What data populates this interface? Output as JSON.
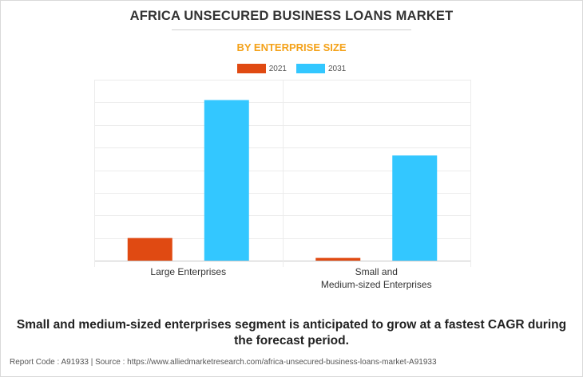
{
  "header": {
    "title": "AFRICA UNSECURED BUSINESS LOANS MARKET",
    "subtitle": "BY ENTERPRISE SIZE"
  },
  "chart_data": {
    "type": "bar",
    "title": "AFRICA UNSECURED BUSINESS LOANS MARKET",
    "subtitle": "BY ENTERPRISE SIZE",
    "categories": [
      "Large Enterprises",
      "Small and\nMedium-sized Enterprises"
    ],
    "category_lines": [
      [
        "Large Enterprises"
      ],
      [
        "Small and",
        "Medium-sized Enterprises"
      ]
    ],
    "series": [
      {
        "name": "2021",
        "color": "#e04a12",
        "values": [
          1.0,
          0.12
        ]
      },
      {
        "name": "2031",
        "color": "#33c7ff",
        "values": [
          7.1,
          4.65
        ]
      }
    ],
    "ylim": [
      0,
      8
    ],
    "ytick_step": 1,
    "grid": true,
    "legend_position": "top-center",
    "xlabel": "",
    "ylabel": ""
  },
  "footer": {
    "statement": "Small and medium-sized enterprises segment is anticipated to grow at a fastest CAGR during the forecast period.",
    "source": "Report Code : A91933  |  Source : https://www.alliedmarketresearch.com/africa-unsecured-business-loans-market-A91933"
  }
}
